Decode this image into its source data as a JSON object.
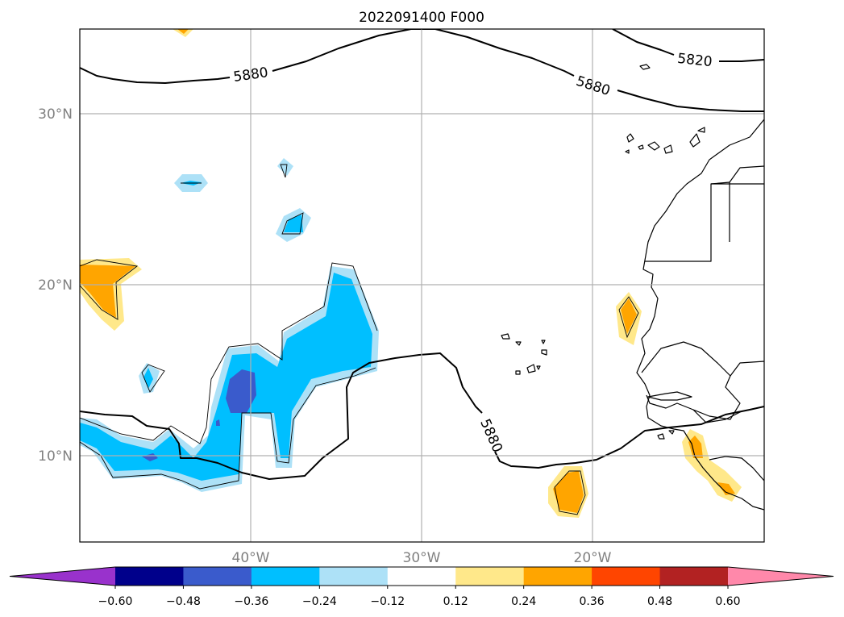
{
  "title": "2022091400 F000",
  "axes": {
    "lat_labels": [
      "30°N",
      "20°N",
      "10°N"
    ],
    "lon_labels": [
      "40°W",
      "30°W",
      "20°W"
    ]
  },
  "contour_labels": [
    "5880",
    "5880",
    "5880",
    "5820"
  ],
  "colorbar": {
    "ticks": [
      "−0.60",
      "−0.48",
      "−0.36",
      "−0.24",
      "−0.12",
      "0.12",
      "0.24",
      "0.36",
      "0.48",
      "0.60"
    ],
    "colors": [
      "#9932CC",
      "#00008B",
      "#3A5BCC",
      "#00BFFF",
      "#ADE1F7",
      "#FFFFFF",
      "#FFE88A",
      "#FFA500",
      "#FF4500",
      "#B22222",
      "#FF88AA"
    ],
    "extend": "both"
  },
  "map": {
    "region": "Tropical North Atlantic / West Africa",
    "lat_range": [
      5,
      35
    ],
    "lon_range": [
      -50,
      -10
    ],
    "contour_variable_levels": [
      5820,
      5880
    ],
    "gridlines": true
  }
}
